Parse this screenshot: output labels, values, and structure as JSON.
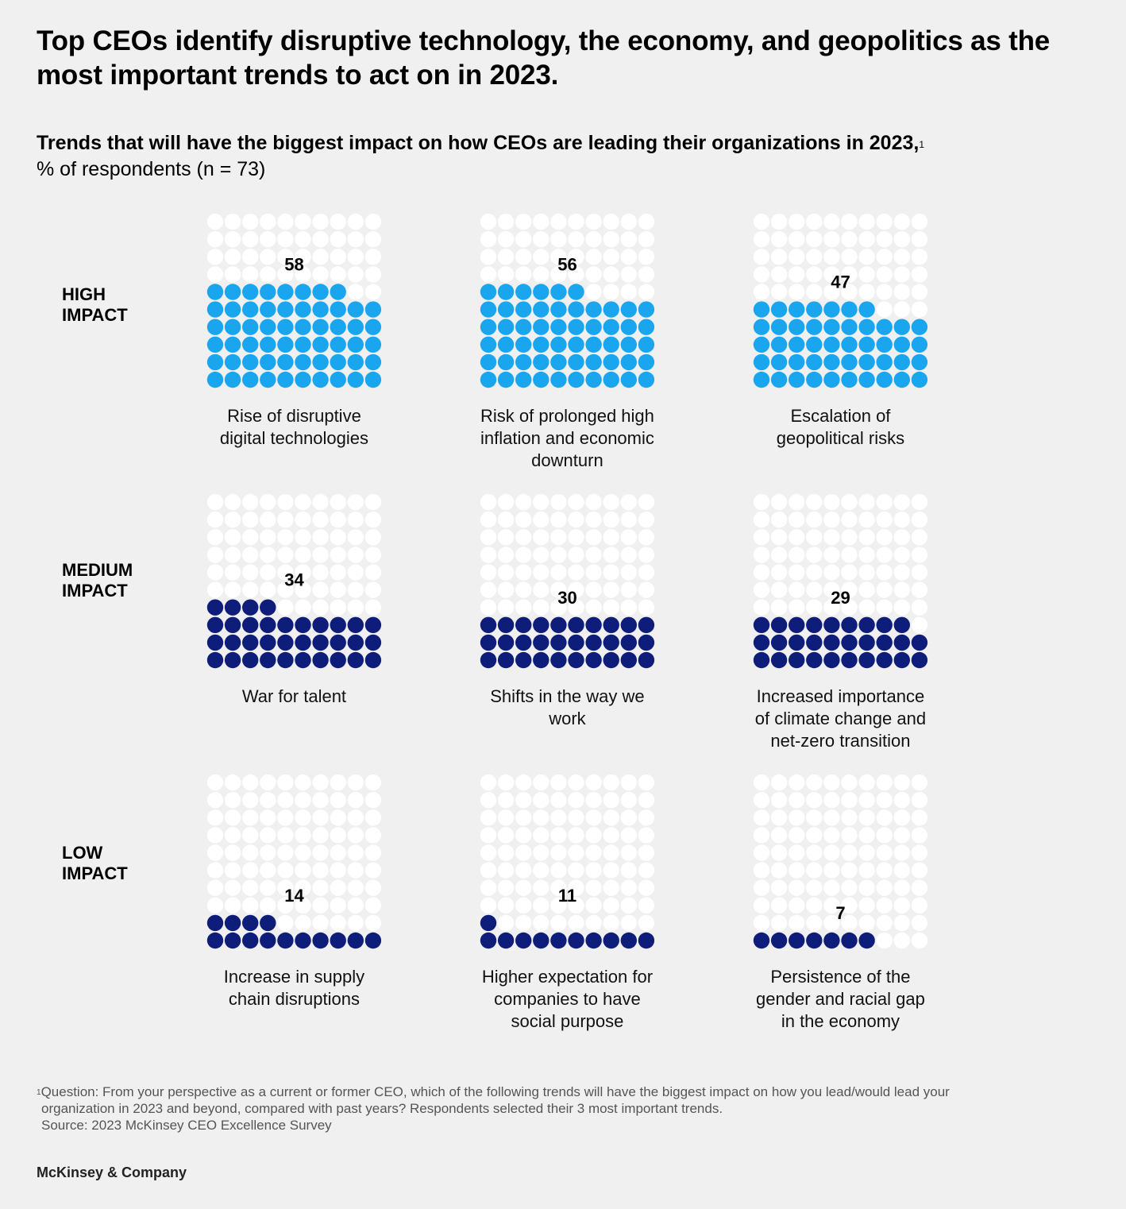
{
  "headline": "Top CEOs identify disruptive technology, the economy, and geopolitics as the most important trends to act on in 2023.",
  "subtitle": {
    "main": "Trends that will have the biggest impact on how CEOs are leading their organizations in 2023,",
    "footnote_marker": "1",
    "unit": "% of respondents (n = 73)"
  },
  "row_labels": [
    {
      "line1": "HIGH",
      "line2": "IMPACT"
    },
    {
      "line1": "MEDIUM",
      "line2": "IMPACT"
    },
    {
      "line1": "LOW",
      "line2": "IMPACT"
    }
  ],
  "colors": {
    "high": "#1aa6ee",
    "medium_low": "#0e1c7a",
    "empty_dot": "#ffffff",
    "background": "#f0f0f0"
  },
  "chart_data": {
    "type": "waffle",
    "unit": "% of respondents",
    "grid": "10 x 10 dots, 1 dot = 1%",
    "categories": [
      "Rise of disruptive digital technologies",
      "Risk of prolonged high inflation and economic downturn",
      "Escalation of geopolitical risks",
      "War for talent",
      "Shifts in the way we work",
      "Increased importance of climate change and net-zero transition",
      "Increase in supply chain disruptions",
      "Higher expectation for companies to have social purpose",
      "Persistence of the gender and racial gap in the economy"
    ],
    "values": [
      58,
      56,
      47,
      34,
      30,
      29,
      14,
      11,
      7
    ],
    "groups": [
      "high",
      "high",
      "high",
      "medium",
      "medium",
      "medium",
      "low",
      "low",
      "low"
    ]
  },
  "category_labels": [
    [
      "Rise of disruptive",
      "digital technologies"
    ],
    [
      "Risk of prolonged high",
      "inflation and economic",
      "downturn"
    ],
    [
      "Escalation of",
      "geopolitical risks"
    ],
    [
      "War for talent"
    ],
    [
      "Shifts in the way we",
      "work"
    ],
    [
      "Increased importance",
      "of climate change and",
      "net-zero transition"
    ],
    [
      "Increase in supply",
      "chain disruptions"
    ],
    [
      "Higher expectation for",
      "companies to have",
      "social purpose"
    ],
    [
      "Persistence of the",
      "gender and racial gap",
      "in the economy"
    ]
  ],
  "footnote": {
    "marker": "1",
    "line1": "Question: From your perspective as a current or former CEO, which of the following trends will have the biggest impact on how you lead/would lead your",
    "line2": "organization in 2023 and beyond, compared with past years? Respondents selected their 3 most important trends.",
    "source": "Source: 2023 McKinsey CEO Excellence Survey"
  },
  "brand": "McKinsey & Company"
}
